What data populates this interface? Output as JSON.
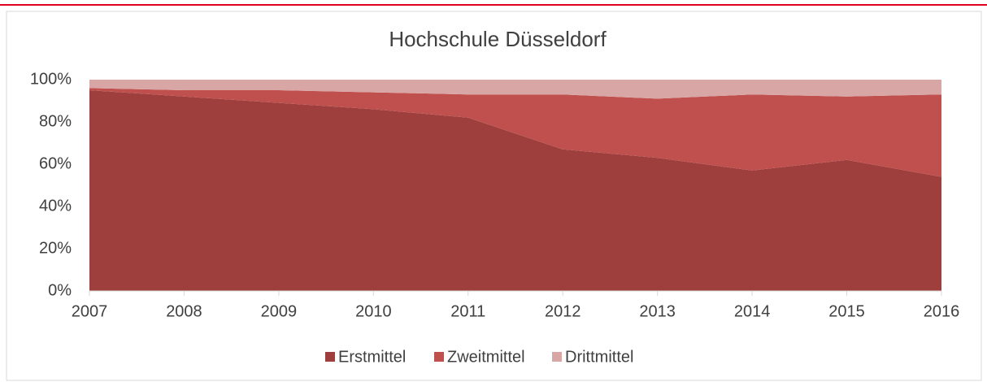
{
  "chart_data": {
    "type": "stacked_area",
    "title": "Hochschule  Düsseldorf",
    "categories": [
      "2007",
      "2008",
      "2009",
      "2010",
      "2011",
      "2012",
      "2013",
      "2014",
      "2015",
      "2016"
    ],
    "series": [
      {
        "name": "Erstmittel",
        "color": "#9e3e3d",
        "values": [
          95,
          92,
          89,
          86,
          82,
          67,
          63,
          57,
          62,
          54
        ]
      },
      {
        "name": "Zweitmittel",
        "color": "#c0504d",
        "values": [
          1,
          3,
          6,
          8,
          11,
          26,
          28,
          36,
          30,
          39
        ]
      },
      {
        "name": "Drittmittel",
        "color": "#d9a6a6",
        "values": [
          4,
          5,
          5,
          6,
          7,
          7,
          9,
          7,
          8,
          7
        ]
      }
    ],
    "ylim": [
      0,
      100
    ],
    "yticks": [
      {
        "value": 0,
        "label": "0%"
      },
      {
        "value": 20,
        "label": "20%"
      },
      {
        "value": 40,
        "label": "40%"
      },
      {
        "value": 60,
        "label": "60%"
      },
      {
        "value": 80,
        "label": "80%"
      },
      {
        "value": 100,
        "label": "100%"
      }
    ],
    "grid": false,
    "legend": "bottom"
  }
}
